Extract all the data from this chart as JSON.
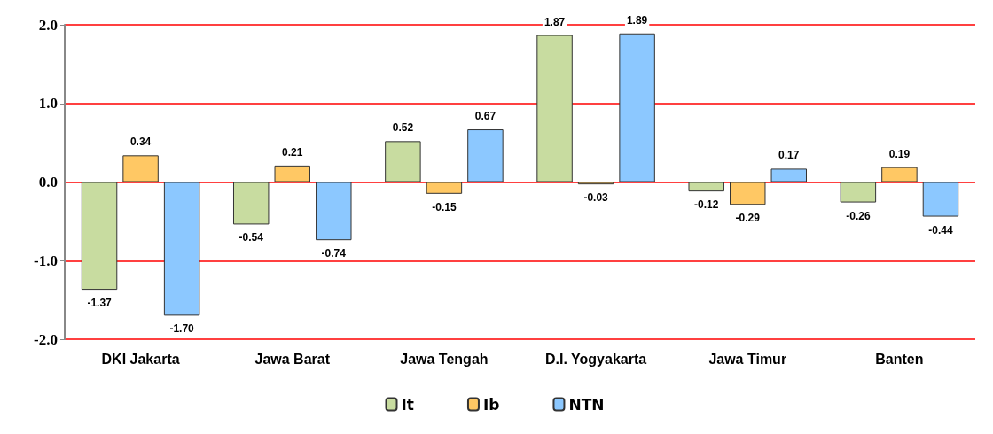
{
  "chart_data": {
    "type": "bar",
    "categories": [
      "DKI Jakarta",
      "Jawa Barat",
      "Jawa Tengah",
      "D.I. Yogyakarta",
      "Jawa Timur",
      "Banten"
    ],
    "series": [
      {
        "name": "It",
        "color": "#c8dca0",
        "values": [
          -1.37,
          -0.54,
          0.52,
          1.87,
          -0.12,
          -0.26
        ],
        "value_labels": [
          "-1.37",
          "-0.54",
          "0.52",
          "1.87",
          "-0.12",
          "-0.26"
        ]
      },
      {
        "name": "Ib",
        "color": "#ffc864",
        "values": [
          0.34,
          0.21,
          -0.15,
          -0.03,
          -0.29,
          0.19
        ],
        "value_labels": [
          "0.34",
          "0.21",
          "-0.15",
          "-0.03",
          "-0.29",
          "0.19"
        ]
      },
      {
        "name": "NTN",
        "color": "#8cc8ff",
        "values": [
          -1.7,
          -0.74,
          0.67,
          1.89,
          0.17,
          -0.44
        ],
        "value_labels": [
          "-1.70",
          "-0.74",
          "0.67",
          "1.89",
          "0.17",
          "-0.44"
        ]
      }
    ],
    "ylim": [
      -2,
      2
    ],
    "yticks": [
      {
        "value": -2,
        "label": "-2.0"
      },
      {
        "value": -1,
        "label": "-1.0"
      },
      {
        "value": 0,
        "label": "0.0"
      },
      {
        "value": 1,
        "label": "1.0"
      },
      {
        "value": 2,
        "label": "2.0"
      }
    ],
    "grid": "y",
    "legend": "bottom"
  }
}
